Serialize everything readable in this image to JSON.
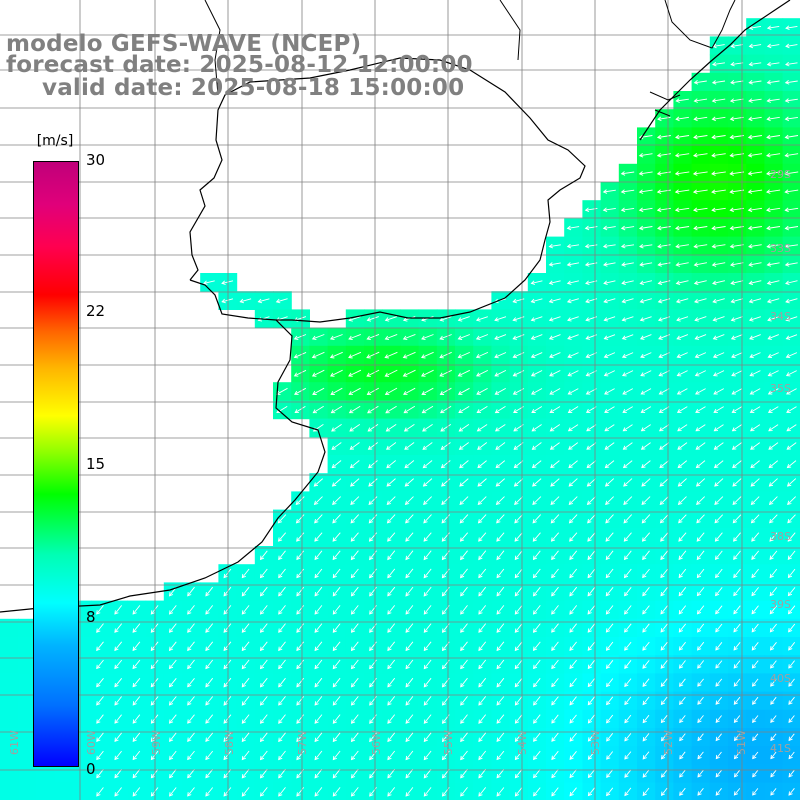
{
  "titles": {
    "model": "modelo GEFS-WAVE (NCEP)",
    "forecast_date": "forecast date: 2025-08-12 12:00:00",
    "valid_date": "valid date: 2025-08-18 15:00:00"
  },
  "colorbar": {
    "unit": "[m/s]",
    "ticks": [
      "30",
      "22",
      "15",
      "8",
      "0"
    ],
    "tick_values": [
      30,
      22,
      15,
      8,
      0
    ],
    "min": 0,
    "max": 30,
    "colors": [
      "#0000ff",
      "#0070ff",
      "#00b4ff",
      "#00ffff",
      "#00ffb4",
      "#00ff00",
      "#90ff00",
      "#ffff00",
      "#ffb400",
      "#ff6400",
      "#ff0000",
      "#ff0050",
      "#c0007a"
    ]
  },
  "lat_labels": [
    "29S",
    "33S",
    "34S",
    "35S",
    "38S",
    "39S",
    "40S",
    "41S"
  ],
  "lon_labels": [
    "61W",
    "60W",
    "59W",
    "58W",
    "57W",
    "56W",
    "55W",
    "54W",
    "53W",
    "52W",
    "51W"
  ],
  "field": {
    "variable": "wind speed and direction",
    "regions": [
      {
        "zone": "north-east coastal band",
        "speed": 12
      },
      {
        "zone": "Rio de la Plata estuary",
        "speed": 11
      },
      {
        "zone": "central shelf",
        "speed": 9
      },
      {
        "zone": "south-west",
        "speed": 8
      },
      {
        "zone": "south-east offshore",
        "speed": 5
      }
    ]
  },
  "colors": {
    "title": "#808080",
    "land": "#ffffff",
    "grid": "#808080",
    "coast": "#000000",
    "arrows": "#ffffff"
  }
}
